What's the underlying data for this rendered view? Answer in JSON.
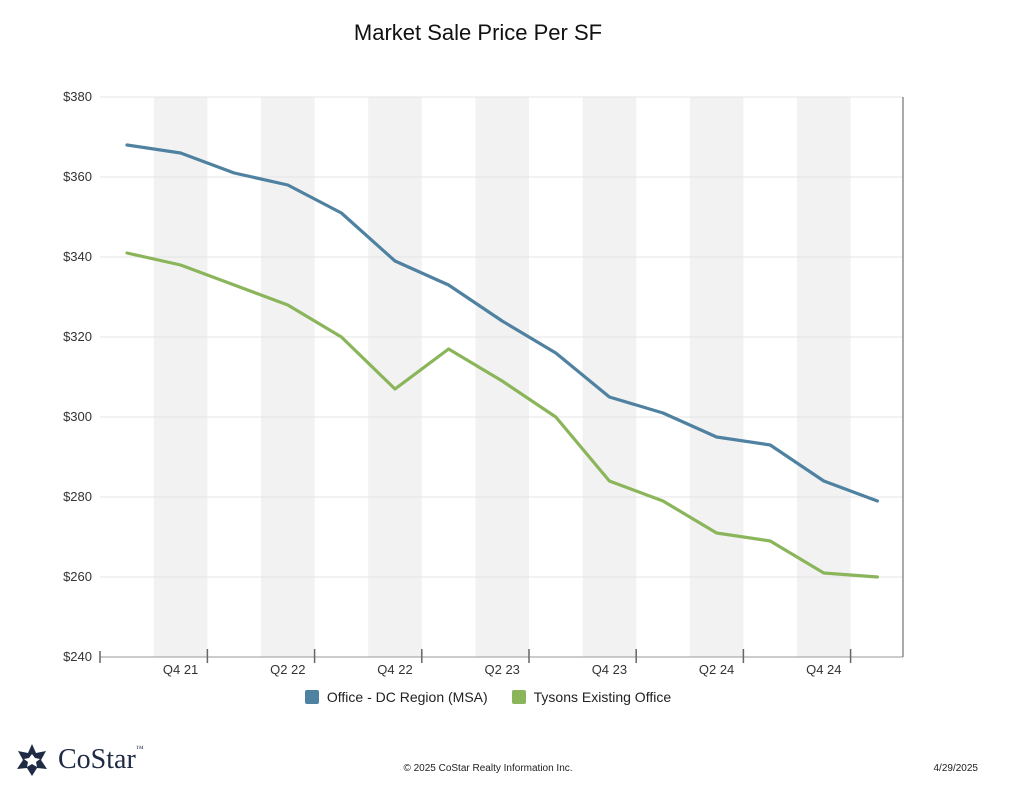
{
  "brand": {
    "name": "CoStar",
    "trademark": "™",
    "logo_icon": "costar-star-logo"
  },
  "footer": {
    "copyright": "© 2025 CoStar Realty Information Inc.",
    "date": "4/29/2025"
  },
  "colors": {
    "series_1": "#4f81a1",
    "series_2": "#8bb55a",
    "band": "#f2f2f2",
    "grid": "#e4e4e4",
    "axis": "#999999"
  },
  "chart_data": {
    "type": "line",
    "title": "Market Sale Price Per SF",
    "xlabel": "",
    "ylabel": "",
    "ylim": [
      240,
      380
    ],
    "yticks": [
      240,
      260,
      280,
      300,
      320,
      340,
      360,
      380
    ],
    "ytick_labels": [
      "$240",
      "$260",
      "$280",
      "$300",
      "$320",
      "$340",
      "$360",
      "$380"
    ],
    "x": [
      "Q3 21",
      "Q4 21",
      "Q1 22",
      "Q2 22",
      "Q3 22",
      "Q4 22",
      "Q1 23",
      "Q2 23",
      "Q3 23",
      "Q4 23",
      "Q1 24",
      "Q2 24",
      "Q3 24",
      "Q4 24",
      "Q1 25"
    ],
    "xtick_labels": [
      "Q4 21",
      "Q2 22",
      "Q4 22",
      "Q2 23",
      "Q4 23",
      "Q2 24",
      "Q4 24"
    ],
    "grid": true,
    "legend_position": "bottom",
    "series": [
      {
        "name": "Office - DC Region (MSA)",
        "color": "#4f81a1",
        "values": [
          368,
          366,
          361,
          358,
          351,
          339,
          333,
          324,
          316,
          305,
          301,
          295,
          293,
          284,
          279
        ]
      },
      {
        "name": "Tysons Existing Office",
        "color": "#8bb55a",
        "values": [
          341,
          338,
          333,
          328,
          320,
          307,
          317,
          309,
          300,
          284,
          279,
          271,
          269,
          261,
          260
        ]
      }
    ]
  }
}
